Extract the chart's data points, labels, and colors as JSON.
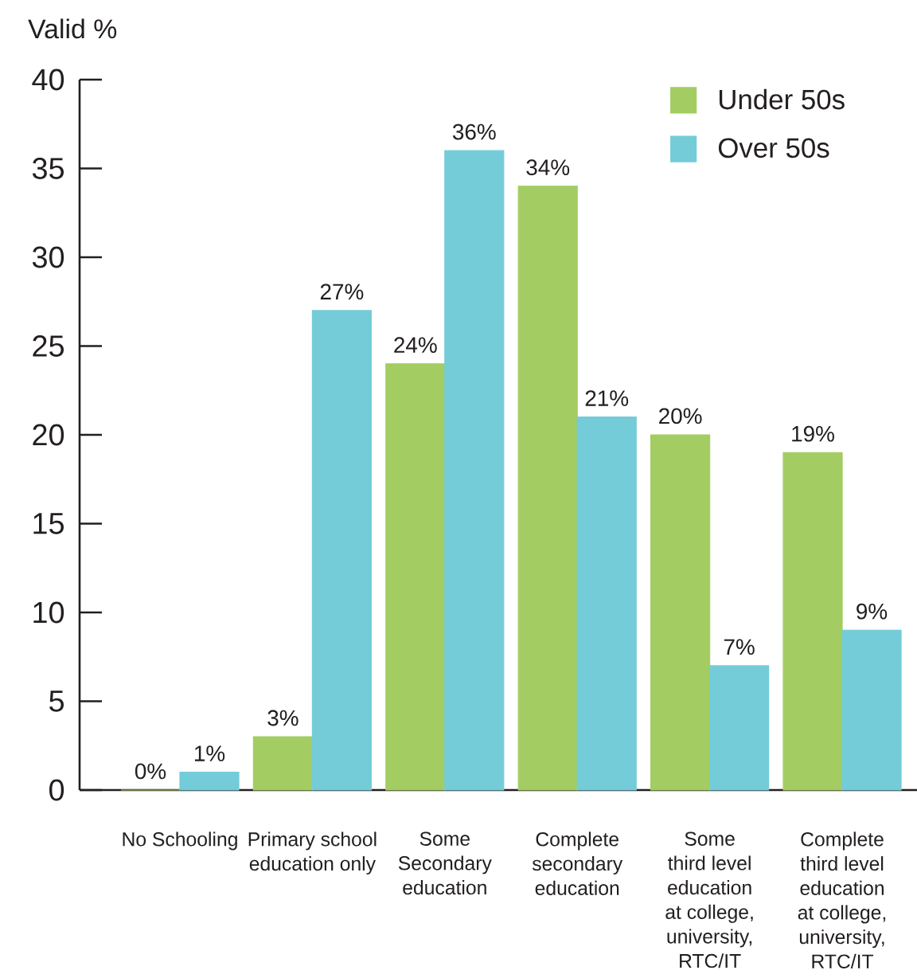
{
  "chart_data": {
    "type": "bar",
    "ylabel": "Valid %",
    "categories": [
      "No Schooling",
      "Primary school education only",
      "Some Secondary education",
      "Complete secondary education",
      "Some third level education at college, university, RTC/IT",
      "Complete third level education at college, university, RTC/IT"
    ],
    "series": [
      {
        "name": "Under 50s",
        "color": "#a3cd62",
        "values": [
          0,
          3,
          24,
          34,
          20,
          19
        ],
        "value_labels": [
          "0%",
          "3%",
          "24%",
          "34%",
          "20%",
          "19%"
        ]
      },
      {
        "name": "Over 50s",
        "color": "#74ccd8",
        "values": [
          1,
          27,
          36,
          21,
          7,
          9
        ],
        "value_labels": [
          "1%",
          "27%",
          "36%",
          "21%",
          "7%",
          "9%"
        ]
      }
    ],
    "ylim": [
      0,
      40
    ],
    "yticks": [
      0,
      5,
      10,
      15,
      20,
      25,
      30,
      35,
      40
    ],
    "legend": "top right"
  }
}
